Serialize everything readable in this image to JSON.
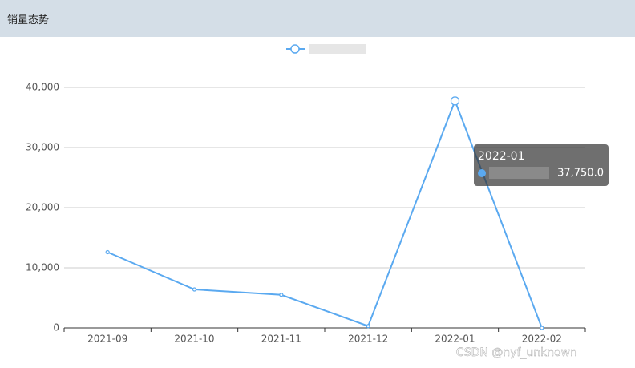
{
  "header": {
    "title": "销量态势"
  },
  "chart_data": {
    "type": "line",
    "categories": [
      "2021-09",
      "2021-10",
      "2021-11",
      "2021-12",
      "2022-01",
      "2022-02"
    ],
    "series": [
      {
        "color": "#5aa9f0",
        "values": [
          12600,
          6400,
          5500,
          300,
          37750,
          0
        ],
        "value_labels": [
          null,
          null,
          null,
          null,
          "37,750.0",
          null
        ]
      }
    ],
    "ylim": [
      0,
      40000
    ],
    "yticks": [
      0,
      {
        "value": 10000,
        "label": "10,000"
      },
      {
        "value": 20000,
        "label": "20,000"
      },
      {
        "value": 30000,
        "label": "30,000"
      },
      {
        "value": 40000,
        "label": "40,000"
      }
    ],
    "grid": true,
    "tooltip_index": 4
  },
  "watermark": "CSDN @nyf_unknown"
}
